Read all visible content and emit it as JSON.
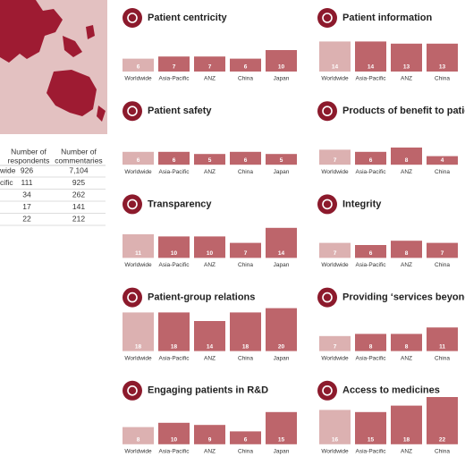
{
  "chart_data": [
    {
      "type": "bar",
      "title": "Patient centricity",
      "categories": [
        "Worldwide",
        "Asia-Pacific",
        "ANZ",
        "China",
        "Japan"
      ],
      "values": [
        6,
        7,
        7,
        6,
        10
      ],
      "color": "#bd656b",
      "first_color": "#dcb1b1"
    },
    {
      "type": "bar",
      "title": "Patient safety",
      "categories": [
        "Worldwide",
        "Asia-Pacific",
        "ANZ",
        "China",
        "Japan"
      ],
      "values": [
        6,
        6,
        5,
        6,
        5
      ],
      "color": "#bd656b",
      "first_color": "#dcb1b1"
    },
    {
      "type": "bar",
      "title": "Transparency",
      "categories": [
        "Worldwide",
        "Asia-Pacific",
        "ANZ",
        "China",
        "Japan"
      ],
      "values": [
        11,
        10,
        10,
        7,
        14
      ],
      "color": "#bd656b",
      "first_color": "#dcb1b1"
    },
    {
      "type": "bar",
      "title": "Patient-group relations",
      "categories": [
        "Worldwide",
        "Asia-Pacific",
        "ANZ",
        "China",
        "Japan"
      ],
      "values": [
        18,
        18,
        14,
        18,
        20
      ],
      "color": "#bd656b",
      "first_color": "#dcb1b1"
    },
    {
      "type": "bar",
      "title": "Engaging patients in R&D",
      "categories": [
        "Worldwide",
        "Asia-Pacific",
        "ANZ",
        "China",
        "Japan"
      ],
      "values": [
        8,
        10,
        9,
        6,
        15
      ],
      "color": "#bd656b",
      "first_color": "#dcb1b1"
    },
    {
      "type": "bar",
      "title": "Patient information",
      "categories": [
        "Worldwide",
        "Asia-Pacific",
        "ANZ",
        "China"
      ],
      "values": [
        14,
        14,
        13,
        13
      ],
      "color": "#bd656b",
      "first_color": "#dcb1b1"
    },
    {
      "type": "bar",
      "title": "Products of benefit to patie",
      "categories": [
        "Worldwide",
        "Asia-Pacific",
        "ANZ",
        "China"
      ],
      "values": [
        7,
        6,
        8,
        4
      ],
      "color": "#bd656b",
      "first_color": "#dcb1b1"
    },
    {
      "type": "bar",
      "title": "Integrity",
      "categories": [
        "Worldwide",
        "Asia-Pacific",
        "ANZ",
        "China"
      ],
      "values": [
        7,
        6,
        8,
        7
      ],
      "color": "#bd656b",
      "first_color": "#dcb1b1"
    },
    {
      "type": "bar",
      "title": "Providing ‘services beyond t",
      "categories": [
        "Worldwide",
        "Asia-Pacific",
        "ANZ",
        "China"
      ],
      "values": [
        7,
        8,
        8,
        11
      ],
      "color": "#bd656b",
      "first_color": "#dcb1b1"
    },
    {
      "type": "bar",
      "title": "Access to medicines",
      "categories": [
        "Worldwide",
        "Asia-Pacific",
        "ANZ",
        "China"
      ],
      "values": [
        16,
        15,
        18,
        22
      ],
      "color": "#bd656b",
      "first_color": "#dcb1b1"
    }
  ],
  "table": {
    "headers": [
      [
        "Number of",
        "respondents"
      ],
      [
        "Number of",
        "commentaries"
      ]
    ],
    "rows": [
      {
        "label": "wide",
        "respondents": 926,
        "commentaries": "7,104"
      },
      {
        "label": "cific",
        "respondents": 111,
        "commentaries": "925"
      },
      {
        "respondents": 34,
        "commentaries": "262"
      },
      {
        "respondents": 17,
        "commentaries": "141"
      },
      {
        "respondents": 22,
        "commentaries": "212"
      }
    ]
  }
}
